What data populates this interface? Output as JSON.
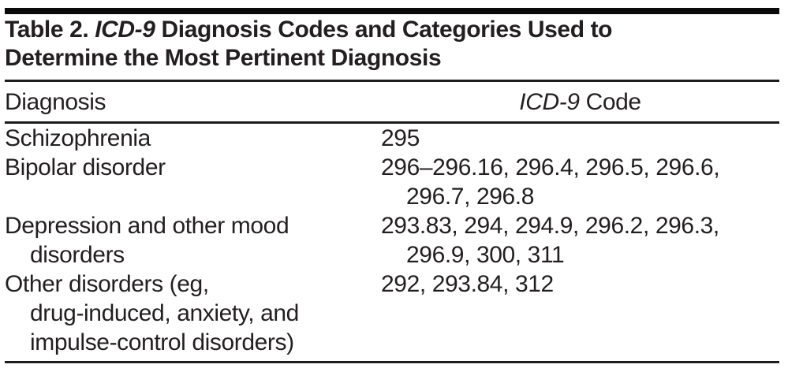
{
  "title": {
    "line1_prefix": "Table 2. ",
    "line1_italic": "ICD-9",
    "line1_suffix": " Diagnosis Codes and Categories Used to",
    "line2": "Determine the Most Pertinent Diagnosis"
  },
  "header": {
    "diagnosis_label": "Diagnosis",
    "code_label_italic": "ICD-9",
    "code_label_rest": " Code"
  },
  "rows": [
    {
      "diagnosis": [
        "Schizophrenia"
      ],
      "codes": [
        "295"
      ]
    },
    {
      "diagnosis": [
        "Bipolar disorder"
      ],
      "codes": [
        "296–296.16, 296.4, 296.5, 296.6,",
        "296.7, 296.8"
      ]
    },
    {
      "diagnosis": [
        "Depression and other mood",
        "disorders"
      ],
      "codes": [
        "293.83, 294, 294.9, 296.2, 296.3,",
        "296.9, 300, 311"
      ]
    },
    {
      "diagnosis": [
        "Other disorders (eg,",
        "drug-induced, anxiety, and",
        "impulse-control disorders)"
      ],
      "codes": [
        "292, 293.84, 312"
      ]
    }
  ],
  "colors": {
    "text": "#231f20",
    "rule": "#1c1c1c",
    "bar": "#0a0a0a",
    "background": "#ffffff"
  }
}
